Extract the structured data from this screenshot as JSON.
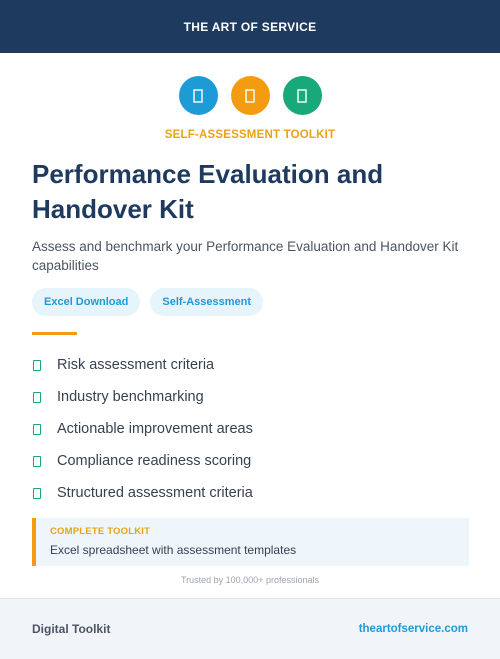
{
  "header": {
    "brand": "THE ART OF SERVICE"
  },
  "icons": [
    {
      "name": "document-icon",
      "color": "#1e9bd7"
    },
    {
      "name": "document-icon",
      "color": "#f39c12"
    },
    {
      "name": "document-icon",
      "color": "#18a87a"
    }
  ],
  "kicker": "SELF-ASSESSMENT TOOLKIT",
  "title": "Performance Evaluation and Handover Kit",
  "subtitle": "Assess and benchmark your Performance Evaluation and Handover Kit capabilities",
  "tags": [
    "Excel Download",
    "Self-Assessment"
  ],
  "features": [
    "Risk assessment criteria",
    "Industry benchmarking",
    "Actionable improvement areas",
    "Compliance readiness scoring",
    "Structured assessment criteria"
  ],
  "callout": {
    "label": "COMPLETE TOOLKIT",
    "text": "Excel spreadsheet with assessment templates"
  },
  "trusted": "Trusted by 100,000+ professionals",
  "footer": {
    "left": "Digital Toolkit",
    "right": "theartofservice.com"
  },
  "colors": {
    "navy": "#1e3a5f",
    "accent_orange": "#f39c12",
    "accent_blue": "#1e9bd7",
    "accent_green": "#18a87a"
  }
}
